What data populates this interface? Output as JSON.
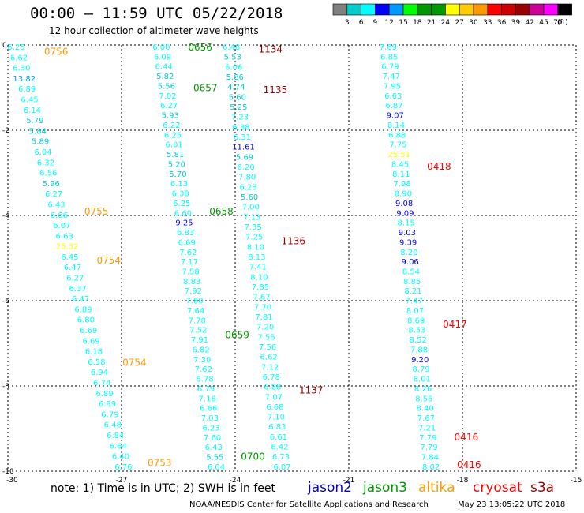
{
  "header": {
    "title": "00:00 – 11:59 UTC 05/22/2018",
    "subtitle": "12 hour collection of altimeter wave heights"
  },
  "footer": {
    "note": "note: 1) Time is in UTC; 2) SWH is in feet",
    "credit": "NOAA/NESDIS Center for Satellite Applications and Research",
    "timestamp": "May 23 13:05:22 UTC 2018"
  },
  "satellites": [
    {
      "name": "jason2",
      "color": "#0000cc"
    },
    {
      "name": "jason3",
      "color": "#009900"
    },
    {
      "name": "altika",
      "color": "#ff9900"
    },
    {
      "name": "cryosat",
      "color": "#ff0000"
    },
    {
      "name": "s3a",
      "color": "#990000"
    }
  ],
  "colorbar": {
    "unit": "(ft)",
    "ticks": [
      "3",
      "6",
      "9",
      "12",
      "15",
      "18",
      "21",
      "24",
      "27",
      "30",
      "33",
      "36",
      "39",
      "42",
      "45",
      "70"
    ],
    "colors": [
      "#808080",
      "#00cccc",
      "#00ffff",
      "#0000ff",
      "#0099ff",
      "#00ff00",
      "#009900",
      "#009900",
      "#ffff00",
      "#ffcc00",
      "#ff9900",
      "#ff0000",
      "#cc0000",
      "#990000",
      "#cc0099",
      "#ff00ff",
      "#000000"
    ]
  },
  "chart_data": {
    "type": "scatter",
    "title": "12 hour collection of altimeter wave heights",
    "xlabel": "",
    "ylabel": "",
    "xlim": [
      -30,
      -15
    ],
    "ylim": [
      -10,
      0
    ],
    "xticks": [
      "-30",
      "-27",
      "-24",
      "-21",
      "-18",
      "-15"
    ],
    "yticks": [
      "0",
      "-2",
      "-4",
      "-6",
      "-8",
      "-10"
    ],
    "grid": true,
    "tracks": [
      {
        "x_start": -29.78,
        "x_end": -26.95,
        "labels": [
          {
            "y": -0.1,
            "time": "0756",
            "sat": "altika"
          },
          {
            "y": -3.85,
            "time": "0755",
            "sat": "altika"
          },
          {
            "y": -5.0,
            "time": "0754",
            "sat": "altika"
          },
          {
            "y": -7.4,
            "time": "0754",
            "sat": "altika"
          },
          {
            "y": -9.75,
            "time": "0753",
            "sat": "altika"
          }
        ],
        "values": [
          "6.25",
          "6.62",
          "6.30",
          "13.82",
          "6.89",
          "6.45",
          "6.14",
          "5.79",
          "5.84",
          "5.89",
          "6.04",
          "6.32",
          "6.56",
          "5.96",
          "6.27",
          "6.43",
          "6.66",
          "6.07",
          "6.63",
          "25.32",
          "6.45",
          "6.47",
          "6.27",
          "6.37",
          "6.47",
          "6.89",
          "6.80",
          "6.69",
          "6.69",
          "6.18",
          "6.58",
          "6.94",
          "6.74",
          "6.89",
          "6.99",
          "6.79",
          "6.48",
          "6.84",
          "6.64",
          "6.40",
          "6.76"
        ]
      },
      {
        "x_start": -25.95,
        "x_end": -24.5,
        "labels": [
          {
            "y": -0.0,
            "time": "0656",
            "sat": "jason3"
          },
          {
            "y": -0.95,
            "time": "0657",
            "sat": "jason3"
          },
          {
            "y": -3.85,
            "time": "0658",
            "sat": "jason3"
          },
          {
            "y": -6.75,
            "time": "0659",
            "sat": "jason3"
          },
          {
            "y": -9.6,
            "time": "0700",
            "sat": "jason3"
          }
        ],
        "values": [
          "6.00",
          "6.09",
          "6.44",
          "5.82",
          "5.56",
          "7.02",
          "6.27",
          "5.93",
          "6.22",
          "6.25",
          "6.01",
          "5.81",
          "5.20",
          "5.70",
          "6.13",
          "6.38",
          "6.25",
          "6.60",
          "9.25",
          "6.83",
          "6.69",
          "7.62",
          "7.17",
          "7.58",
          "8.83",
          "7.92",
          "7.80",
          "7.64",
          "7.78",
          "7.52",
          "7.91",
          "6.82",
          "7.30",
          "7.62",
          "6.78",
          "6.79",
          "7.16",
          "6.66",
          "7.03",
          "6.23",
          "7.60",
          "6.43",
          "5.55",
          "6.04"
        ]
      },
      {
        "x_start": -24.1,
        "x_end": -22.76,
        "labels": [
          {
            "y": -0.05,
            "time": "1134",
            "sat": "s3a"
          },
          {
            "y": -1.0,
            "time": "1135",
            "sat": "s3a"
          },
          {
            "y": -4.55,
            "time": "1136",
            "sat": "s3a"
          },
          {
            "y": -8.05,
            "time": "1137",
            "sat": "s3a"
          }
        ],
        "values": [
          "6.48",
          "5.53",
          "6.06",
          "5.86",
          "4.74",
          "5.60",
          "5.25",
          "7.23",
          "6.38",
          "6.31",
          "11.61",
          "5.69",
          "6.20",
          "7.80",
          "6.23",
          "5.60",
          "7.00",
          "7.13",
          "7.35",
          "7.25",
          "8.10",
          "8.13",
          "7.41",
          "8.10",
          "7.85",
          "7.67",
          "7.70",
          "7.81",
          "7.20",
          "7.55",
          "7.56",
          "6.62",
          "7.12",
          "6.78",
          "6.88",
          "7.07",
          "6.68",
          "7.10",
          "6.83",
          "6.61",
          "6.42",
          "6.73",
          "6.07"
        ]
      },
      {
        "x_start": -19.96,
        "x_end": -18.83,
        "labels": [
          {
            "y": -2.8,
            "time": "0418",
            "sat": "cryosat"
          },
          {
            "y": -6.5,
            "time": "0417",
            "sat": "cryosat"
          },
          {
            "y": -9.15,
            "time": "0416",
            "sat": "cryosat"
          },
          {
            "y": -9.8,
            "time": "0416",
            "sat": "cryosat"
          }
        ],
        "values": [
          "7.69",
          "6.85",
          "6.79",
          "7.47",
          "7.95",
          "6.63",
          "6.87",
          "9.07",
          "8.14",
          "6.88",
          "7.75",
          "25.51",
          "8.45",
          "8.11",
          "7.98",
          "8.90",
          "9.08",
          "9.09",
          "8.15",
          "9.03",
          "9.39",
          "8.20",
          "9.06",
          "8.54",
          "8.85",
          "8.21",
          "7.47",
          "8.07",
          "8.69",
          "8.53",
          "8.52",
          "7.88",
          "9.20",
          "8.79",
          "8.01",
          "8.26",
          "8.55",
          "8.40",
          "7.67",
          "7.21",
          "7.79",
          "7.79",
          "7.84",
          "8.02"
        ]
      }
    ]
  }
}
